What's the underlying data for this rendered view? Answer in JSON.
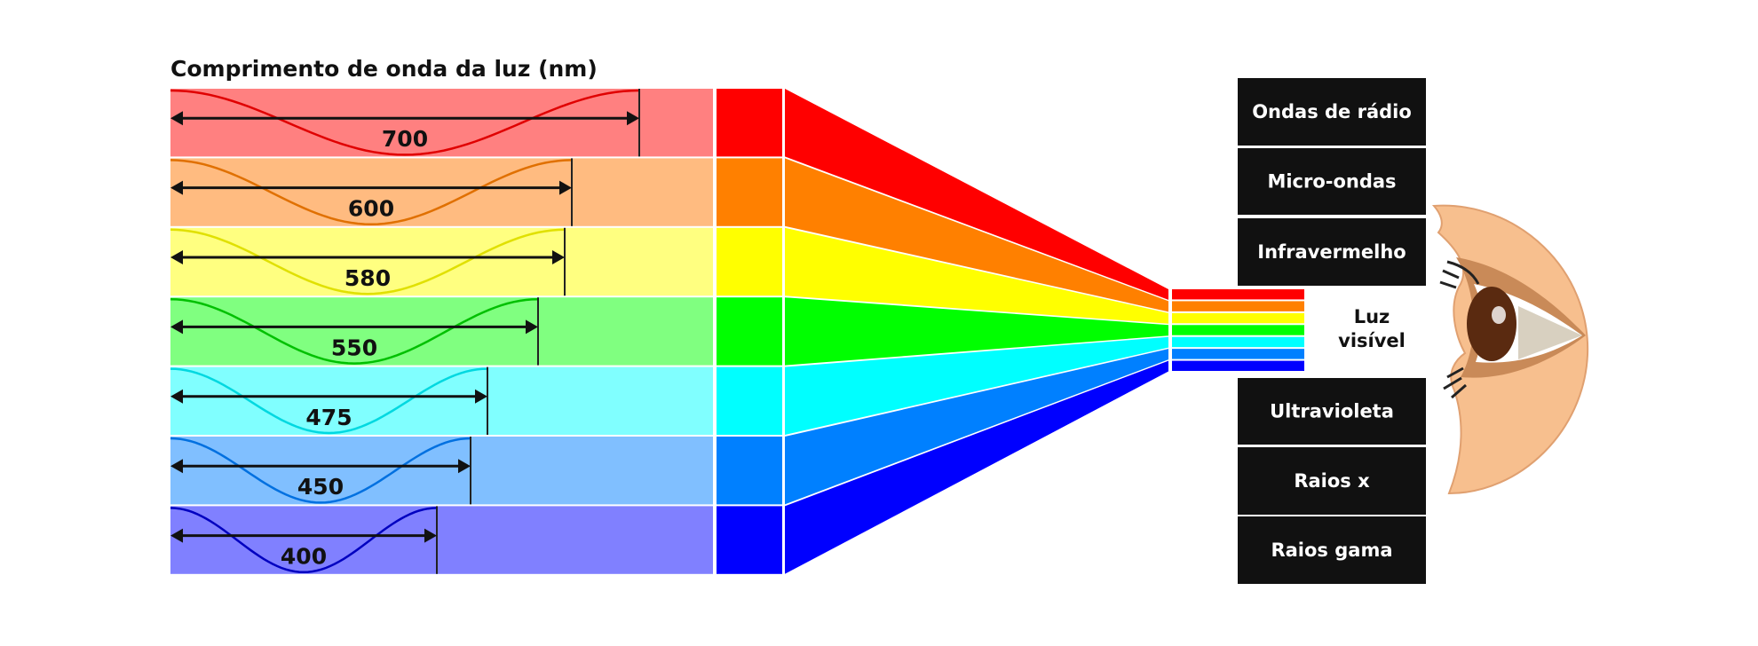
{
  "header": {
    "title": "Comprimento de onda da luz (nm)"
  },
  "rows": [
    {
      "wavelength": 700
    },
    {
      "wavelength": 600
    },
    {
      "wavelength": 580
    },
    {
      "wavelength": 550
    },
    {
      "wavelength": 475
    },
    {
      "wavelength": 450
    },
    {
      "wavelength": 400
    }
  ],
  "spectrum": {
    "above": [
      "Ondas de rádio",
      "Micro-ondas",
      "Infravermelho"
    ],
    "visible": [
      "Luz",
      "visível"
    ],
    "below": [
      "Ultravioleta",
      "Raios x",
      "Raios gama"
    ]
  }
}
